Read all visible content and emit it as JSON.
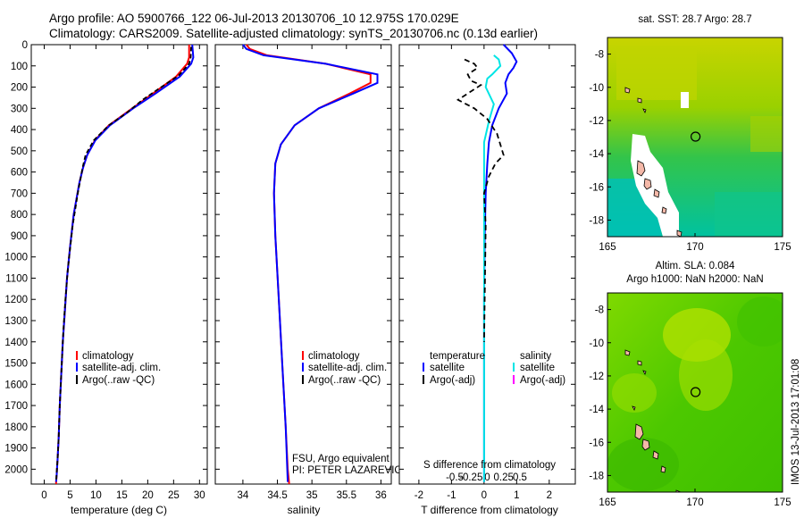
{
  "header": {
    "line1": "Argo profile: AO 5900766_122 06-Jul-2013 20130706_10 12.975S 170.029E",
    "line2": "Climatology: CARS2009. Satellite-adjusted climatology: synTS_20130706.nc (0.13d earlier)"
  },
  "side_stamp": "IMOS 13-Jul-2013 17:01:08",
  "colors": {
    "climatology": "#ff0000",
    "satellite": "#0000ff",
    "argo": "#000000",
    "salinity_satellite": "#00e5e5",
    "salinity_argo": "#ff00ff"
  },
  "chart_data": [
    {
      "type": "line",
      "name": "temperature",
      "xlabel": "temperature (deg C)",
      "ylabel": "",
      "xlim": [
        -2.5,
        31.5
      ],
      "ylim": [
        2070,
        0
      ],
      "xticks": [
        0,
        5,
        10,
        15,
        20,
        25,
        30
      ],
      "xtick_labels": [
        "0",
        "5",
        "10",
        "15",
        "20",
        "25",
        "30"
      ],
      "yticks": [
        0,
        100,
        200,
        300,
        400,
        500,
        600,
        700,
        800,
        900,
        1000,
        1100,
        1200,
        1300,
        1400,
        1500,
        1600,
        1700,
        1800,
        1900,
        2000
      ],
      "ytick_labels": [
        "0",
        "100",
        "200",
        "300",
        "400",
        "500",
        "600",
        "700",
        "800",
        "900",
        "1000",
        "1100",
        "1200",
        "1300",
        "1400",
        "1500",
        "1600",
        "1700",
        "1800",
        "1900",
        "2000"
      ],
      "legend": {
        "position": "lower-left",
        "entries": [
          "climatology",
          "satellite-adj. clim.",
          "Argo(..raw -QC)"
        ]
      },
      "series": [
        {
          "name": "climatology",
          "color": "#ff0000",
          "dash": "",
          "x": [
            28.0,
            28.0,
            27.6,
            25.5,
            21.0,
            17.0,
            12.5,
            9.8,
            8.3,
            7.5,
            6.8,
            5.7,
            5.0,
            4.4,
            4.0,
            3.6,
            3.3,
            3.0,
            2.8,
            2.6,
            2.4,
            2.3,
            2.3
          ],
          "y": [
            0,
            60,
            90,
            150,
            230,
            300,
            380,
            450,
            520,
            580,
            650,
            800,
            950,
            1100,
            1250,
            1400,
            1550,
            1700,
            1850,
            1950,
            2030,
            2060,
            2070
          ]
        },
        {
          "name": "satellite-adj. clim.",
          "color": "#0000ff",
          "dash": "",
          "x": [
            28.6,
            28.8,
            28.4,
            26.2,
            21.5,
            17.2,
            12.7,
            9.9,
            8.3,
            7.5,
            6.8,
            5.7,
            5.0,
            4.4,
            4.0,
            3.6,
            3.3,
            3.0,
            2.8,
            2.6,
            2.4,
            2.3
          ],
          "y": [
            0,
            60,
            90,
            150,
            230,
            300,
            380,
            450,
            520,
            580,
            650,
            800,
            950,
            1100,
            1250,
            1400,
            1550,
            1700,
            1850,
            1950,
            2030,
            2060
          ]
        },
        {
          "name": "Argo(..raw -QC)",
          "color": "#000000",
          "dash": "5,3",
          "x": [
            28.4,
            28.3,
            28.0,
            26.0,
            22.0,
            19.0,
            16.0,
            12.5,
            9.6,
            8.0,
            7.4,
            6.5,
            5.5,
            4.6,
            4.1,
            3.7,
            3.3,
            3.0,
            2.8,
            2.6,
            2.4,
            2.3
          ],
          "y": [
            10,
            60,
            90,
            145,
            210,
            260,
            320,
            380,
            450,
            520,
            580,
            700,
            850,
            1050,
            1200,
            1350,
            1550,
            1700,
            1850,
            1950,
            2020,
            2060
          ]
        }
      ]
    },
    {
      "type": "line",
      "name": "salinity",
      "xlabel": "salinity",
      "xlim": [
        33.6,
        36.15
      ],
      "ylim": [
        2070,
        0
      ],
      "xticks": [
        34,
        34.5,
        35,
        35.5,
        36
      ],
      "xtick_labels": [
        "34",
        "34.5",
        "35",
        "35.5",
        "36"
      ],
      "legend": {
        "position": "lower-right",
        "entries": [
          "climatology",
          "satellite-adj. clim.",
          "Argo(..raw -QC)"
        ]
      },
      "footnote": [
        "FSU, Argo equivalent",
        "PI: PETER LAZAREVICH"
      ],
      "series": [
        {
          "name": "climatology",
          "color": "#ff0000",
          "dash": "",
          "x": [
            34.05,
            34.1,
            34.35,
            35.2,
            35.85,
            35.85,
            35.55,
            35.1,
            34.75,
            34.55,
            34.47,
            34.45,
            34.47,
            34.52,
            34.57,
            34.62,
            34.65,
            34.67
          ],
          "y": [
            0,
            20,
            50,
            90,
            140,
            180,
            230,
            300,
            380,
            470,
            560,
            700,
            900,
            1200,
            1500,
            1800,
            2000,
            2070
          ]
        },
        {
          "name": "satellite-adj. clim.",
          "color": "#0000ff",
          "dash": "",
          "x": [
            34.0,
            34.05,
            34.3,
            35.2,
            35.95,
            35.95,
            35.6,
            35.1,
            34.75,
            34.55,
            34.47,
            34.45,
            34.47,
            34.52,
            34.57,
            34.62,
            34.65
          ],
          "y": [
            0,
            20,
            50,
            90,
            140,
            180,
            230,
            300,
            380,
            470,
            560,
            700,
            900,
            1200,
            1500,
            1800,
            2060
          ]
        }
      ]
    },
    {
      "type": "line",
      "name": "difference",
      "xlabel": "T difference from climatology",
      "top_label": "S difference from climatology",
      "xlim": [
        -2.6,
        2.8
      ],
      "ylim": [
        2070,
        0
      ],
      "xticks": [
        -2,
        -1,
        0,
        1,
        2
      ],
      "xtick_labels": [
        "-2",
        "-1",
        "0",
        "1",
        "2"
      ],
      "sticks": [
        -0.5,
        -0.25,
        0,
        0.25,
        0.5
      ],
      "stick_labels": [
        "-0.5",
        "-0.25",
        "0",
        "0.25",
        "0.5"
      ],
      "legend": {
        "position": "lower",
        "entries": [
          "temperature",
          "satellite",
          "Argo(-adj)",
          "salinity",
          "satellite",
          "Argo(-adj)"
        ]
      },
      "series": [
        {
          "name": "T satellite",
          "color": "#0000ff",
          "dash": "",
          "x": [
            0.6,
            0.85,
            1.0,
            0.9,
            0.75,
            0.65,
            0.7,
            0.45,
            0.25,
            0.15,
            0.1,
            0.05,
            0.02,
            0.0,
            0.0
          ],
          "y": [
            0,
            40,
            80,
            110,
            140,
            180,
            230,
            300,
            380,
            460,
            560,
            700,
            900,
            1200,
            2060
          ]
        },
        {
          "name": "S satellite",
          "color": "#00e5e5",
          "dash": "",
          "x": [
            0.3,
            0.45,
            0.5,
            0.25,
            0.1,
            0.05,
            0.3,
            0.15,
            0.0,
            0.0,
            0.0
          ],
          "y": [
            50,
            70,
            100,
            140,
            160,
            200,
            280,
            360,
            460,
            800,
            2060
          ]
        },
        {
          "name": "T Argo(-adj)",
          "color": "#000000",
          "dash": "6,4",
          "x": [
            -0.6,
            -0.3,
            -0.2,
            -0.5,
            -0.4,
            -0.1,
            -0.8,
            -0.3,
            0.1,
            0.4,
            0.6,
            0.35,
            0.15,
            0.0,
            0.05,
            0.03,
            0.0
          ],
          "y": [
            70,
            90,
            110,
            140,
            170,
            190,
            260,
            300,
            350,
            420,
            520,
            560,
            620,
            700,
            850,
            1100,
            1400
          ]
        }
      ]
    }
  ],
  "maps": [
    {
      "title_lines": [
        "sat. SST: 28.7 Argo: 28.7"
      ],
      "xlim": [
        165,
        175
      ],
      "ylim": [
        -19,
        -7
      ],
      "xticks": [
        165,
        170,
        175
      ],
      "xtick_labels": [
        "165",
        "170",
        "175"
      ],
      "yticks": [
        -8,
        -10,
        -12,
        -14,
        -16,
        -18
      ],
      "ytick_labels": [
        "-8",
        "-10",
        "-12",
        "-14",
        "-16",
        "-18"
      ],
      "argo_position": {
        "lon": 170.029,
        "lat": -12.975
      }
    },
    {
      "title_lines": [
        "Altim. SLA: 0.084",
        "Argo h1000: NaN h2000: NaN"
      ],
      "xlim": [
        165,
        175
      ],
      "ylim": [
        -19,
        -7
      ],
      "xticks": [
        165,
        170,
        175
      ],
      "xtick_labels": [
        "165",
        "170",
        "175"
      ],
      "yticks": [
        -8,
        -10,
        -12,
        -14,
        -16,
        -18
      ],
      "ytick_labels": [
        "-8",
        "-10",
        "-12",
        "-14",
        "-16",
        "-18"
      ],
      "argo_position": {
        "lon": 170.029,
        "lat": -12.975
      }
    }
  ]
}
